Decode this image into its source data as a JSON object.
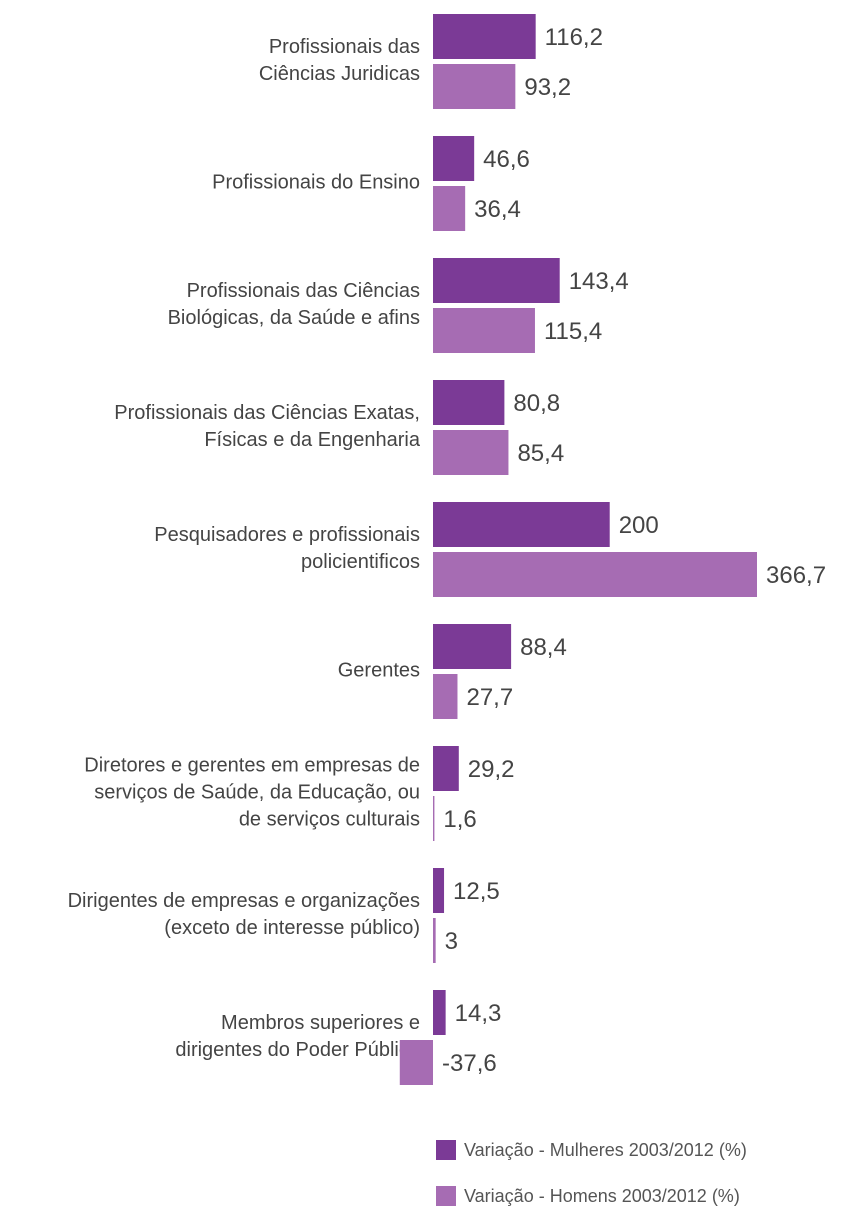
{
  "chart_data": {
    "type": "bar",
    "orientation": "horizontal",
    "categories": [
      [
        "Profissionais das",
        "Ciências Juridicas"
      ],
      [
        "Profissionais do Ensino"
      ],
      [
        "Profissionais das Ciências",
        "Biológicas, da Saúde e afins"
      ],
      [
        "Profissionais das Ciências Exatas,",
        "Físicas e da Engenharia"
      ],
      [
        "Pesquisadores e profissionais",
        "policientificos"
      ],
      [
        "Gerentes"
      ],
      [
        "Diretores e gerentes em empresas de",
        "serviços de Saúde, da Educação, ou",
        "de serviços culturais"
      ],
      [
        "Dirigentes de empresas e organizações",
        "(exceto de interesse público)"
      ],
      [
        "Membros superiores e",
        "dirigentes do Poder Público"
      ]
    ],
    "series": [
      {
        "name": "Variação - Mulheres 2003/2012 (%)",
        "color": "#7b3a96",
        "values": [
          116.2,
          46.6,
          143.4,
          80.8,
          200,
          88.4,
          29.2,
          12.5,
          14.3
        ],
        "value_labels": [
          "116,2",
          "46,6",
          "143,4",
          "80,8",
          "200",
          "88,4",
          "29,2",
          "12,5",
          "14,3"
        ]
      },
      {
        "name": "Variação - Homens 2003/2012 (%)",
        "color": "#a66cb3",
        "values": [
          93.2,
          36.4,
          115.4,
          85.4,
          366.7,
          27.7,
          1.6,
          3,
          -37.6
        ],
        "value_labels": [
          "93,2",
          "36,4",
          "115,4",
          "85,4",
          "366,7",
          "27,7",
          "1,6",
          "3",
          "-37,6"
        ]
      }
    ]
  }
}
